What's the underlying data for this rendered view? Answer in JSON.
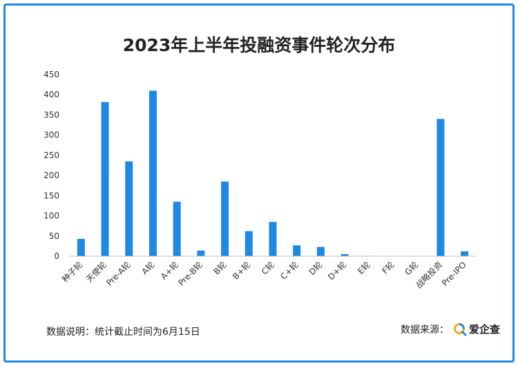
{
  "title": "2023年上半年投融资事件轮次分布",
  "footer": {
    "note": "数据说明：统计截止时间为6月15日",
    "source_label": "数据来源：",
    "brand": "爱企查"
  },
  "colors": {
    "bar": "#1e88e5",
    "border": "#1e88e5",
    "brand_orange": "#f5a623",
    "brand_blue": "#1e88e5"
  },
  "chart_data": {
    "type": "bar",
    "title": "2023年上半年投融资事件轮次分布",
    "categories": [
      "种子轮",
      "天使轮",
      "Pre-A轮",
      "A轮",
      "A+轮",
      "Pre-B轮",
      "B轮",
      "B+轮",
      "C轮",
      "C+轮",
      "D轮",
      "D+轮",
      "E轮",
      "F轮",
      "G轮",
      "战略投资",
      "Pre-IPO"
    ],
    "values": [
      43,
      382,
      235,
      410,
      135,
      14,
      185,
      62,
      85,
      27,
      23,
      5,
      1,
      0,
      0,
      340,
      12
    ],
    "ylim": [
      0,
      450
    ],
    "yticks": [
      0,
      50,
      100,
      150,
      200,
      250,
      300,
      350,
      400,
      450
    ],
    "xlabel": "",
    "ylabel": "",
    "grid": false,
    "legend": "none"
  }
}
